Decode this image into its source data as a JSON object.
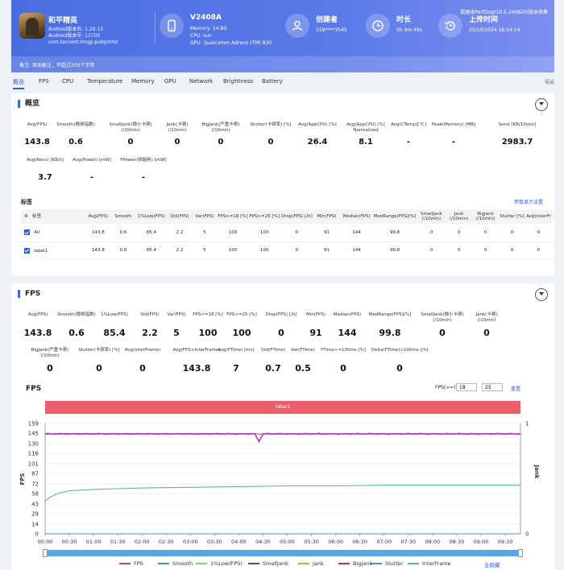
{
  "header": {
    "app_name": "和平精英",
    "android_line1": "Android版本名: 1.28.13",
    "android_line2": "Android版本号: 12700",
    "package": "com.tencent.tmgp.pubgmhd",
    "device_name": "V2408A",
    "memory": "Memory: 14.8G",
    "cpu": "CPU: sun",
    "gpu": "GPU: Qualcomm Adreno (TM) 830",
    "creator_title": "创建者",
    "creator_value": "159****3545",
    "duration_title": "时长",
    "duration_value": "0h 9m 49s",
    "upload_title": "上传时间",
    "upload_value": "25/10/2024 18:14:14",
    "version_note": "数据由PerfDog(10.5.240820)版本收集",
    "remark": "备注: 添加备注，不超过200个字符"
  },
  "tabs": [
    "概览",
    "FPS",
    "CPU",
    "Temperature",
    "Memory",
    "GPU",
    "Network",
    "Brightness",
    "Battery"
  ],
  "export_label": "导出",
  "overview": {
    "title": "概览",
    "watermark": "PerfDog",
    "metrics_row1": [
      {
        "label": "Avg(FPS)",
        "value": "143.8"
      },
      {
        "label": "Smooth(稳帧指数)",
        "value": "0.6"
      },
      {
        "label": "SmallJank(微小卡顿)\n(/10min)",
        "value": "0"
      },
      {
        "label": "Jank(卡顿)\n(/10min)",
        "value": "0"
      },
      {
        "label": "BigJank(严重卡顿)\n(/10min)",
        "value": "0"
      },
      {
        "label": "Stutter(卡顿率) [%]",
        "value": "0"
      },
      {
        "label": "Avg(AppCPU) [%]",
        "value": "26.4"
      },
      {
        "label": "Avg(AppCPU) [%]\nNormalized",
        "value": "8.1"
      },
      {
        "label": "Avg(CTemp)[°C]",
        "value": "-"
      },
      {
        "label": "Peak(Memory) [MB]",
        "value": "-"
      },
      {
        "label": "Send [KB/10min]",
        "value": "2983.7"
      }
    ],
    "metrics_row2": [
      {
        "label": "Avg(Recv) [KB/s]",
        "value": "3.7"
      },
      {
        "label": "Avg(Power) [mW]",
        "value": "-"
      },
      {
        "label": "FPower(帧能耗) [mW]",
        "value": "-"
      }
    ],
    "labels_section": "标签",
    "settings_link": "参数显示设置",
    "table_headers": [
      "标签",
      "Avg(FPS)",
      "Smooth",
      "1%Low(FPS)",
      "Std(FPS)",
      "Var(FPS)",
      "FPS>=18 [%]",
      "FPS>=25 [%]",
      "Drop(FPS) [/h]",
      "Min(FPS)",
      "Median(FPS)",
      "MedRange(FPS)[%]",
      "SmallJank\n(/10min)",
      "Jank\n(/10min)",
      "BigJank\n(/10min)",
      "Stutter [%]",
      "Avg(InterFr"
    ],
    "table_rows": [
      [
        "All",
        "143.8",
        "0.6",
        "85.4",
        "2.2",
        "5",
        "100",
        "100",
        "0",
        "91",
        "144",
        "99.8",
        "0",
        "0",
        "0",
        "0",
        "0"
      ],
      [
        "label1",
        "143.8",
        "0.6",
        "85.4",
        "2.2",
        "5",
        "100",
        "100",
        "0",
        "91",
        "144",
        "99.8",
        "0",
        "0",
        "0",
        "0",
        "0"
      ]
    ]
  },
  "fps_section": {
    "title": "FPS",
    "metrics_row1": [
      {
        "label": "Avg(FPS)",
        "value": "143.8"
      },
      {
        "label": "Smooth(稳帧指数)",
        "value": "0.6"
      },
      {
        "label": "1%Low(FPS)",
        "value": "85.4"
      },
      {
        "label": "Std(FPS)",
        "value": "2.2"
      },
      {
        "label": "Var(FPS)",
        "value": "5"
      },
      {
        "label": "FPS>=18 [%]",
        "value": "100"
      },
      {
        "label": "FPS>=25 [%]",
        "value": "100"
      },
      {
        "label": "Drop(FPS) [/h]",
        "value": "0"
      },
      {
        "label": "Min(FPS)",
        "value": "91"
      },
      {
        "label": "Median(FPS)",
        "value": "144"
      },
      {
        "label": "MedRange(FPS)[%]",
        "value": "99.8"
      },
      {
        "label": "SmallJank(微小卡顿)\n(/10min)",
        "value": "0"
      },
      {
        "label": "Jank(卡顿)\n(/10min)",
        "value": "0"
      }
    ],
    "metrics_row2": [
      {
        "label": "BigJank(严重卡顿)\n(/10min)",
        "value": "0"
      },
      {
        "label": "Stutter(卡顿率) [%]",
        "value": "0"
      },
      {
        "label": "Avg(InterFrame)",
        "value": "0"
      },
      {
        "label": "Avg(FPS+InterFrame)",
        "value": "143.8"
      },
      {
        "label": "Avg(FTime) [ms]",
        "value": "7"
      },
      {
        "label": "Std(FTime)",
        "value": "0.7"
      },
      {
        "label": "Var(FTime)",
        "value": "0.5"
      },
      {
        "label": "FTime>=100ms [%]",
        "value": "0"
      },
      {
        "label": "Delta(FTime)>100ms [/h]",
        "value": "0"
      }
    ],
    "chart_title": "FPS",
    "fps_filter_label": "FPS(>=)",
    "fps_filter_a": "18",
    "fps_filter_b": "25",
    "reset_label": "重置",
    "label_bar": "label1",
    "hide_all": "全隐藏"
  },
  "chart_data": {
    "type": "line",
    "xlabel": "",
    "ylabel": "FPS",
    "y2label": "Jank",
    "y_ticks": [
      "159",
      "145",
      "130",
      "116",
      "101",
      "87",
      "72",
      "58",
      "43",
      "29",
      "14",
      "0"
    ],
    "y2_ticks": [
      "1",
      "0"
    ],
    "ylim": [
      0,
      159
    ],
    "x_ticks": [
      "00:00",
      "00:30",
      "01:00",
      "01:30",
      "02:00",
      "02:30",
      "03:00",
      "03:30",
      "04:00",
      "04:30",
      "05:00",
      "05:30",
      "06:00",
      "06:30",
      "07:00",
      "07:30",
      "08:00",
      "08:30",
      "09:00",
      "09:30"
    ],
    "series": [
      {
        "name": "FPS",
        "color": "#b03fb5",
        "x": [
          0,
          30,
          60,
          90,
          120,
          150,
          180,
          210,
          240,
          260,
          265,
          270,
          300,
          330,
          360,
          390,
          420,
          450,
          480,
          510,
          540,
          570,
          589
        ],
        "y": [
          144,
          144,
          144,
          144,
          144,
          144,
          144,
          144,
          144,
          144,
          133,
          144,
          144,
          144,
          144,
          144,
          144,
          144,
          144,
          144,
          144,
          144,
          144
        ]
      },
      {
        "name": "Smooth",
        "color": "#3fa35a",
        "x": [
          0,
          589
        ],
        "y": [
          0,
          0
        ]
      },
      {
        "name": "1%Low(FPS)",
        "color": "#8fd16b",
        "x": [
          0,
          589
        ],
        "y": [
          0,
          0
        ]
      },
      {
        "name": "SmallJank",
        "color": "#5b3fa8",
        "x": [
          0,
          589
        ],
        "y": [
          0,
          0
        ]
      },
      {
        "name": "Jank",
        "color": "#f0a02e",
        "x": [
          0,
          589
        ],
        "y": [
          0,
          0
        ]
      },
      {
        "name": "BigJank",
        "color": "#c0392b",
        "x": [
          0,
          589
        ],
        "y": [
          0,
          0
        ]
      },
      {
        "name": "Stutter",
        "color": "#4a90c8",
        "x": [
          0,
          589
        ],
        "y": [
          0,
          0
        ]
      },
      {
        "name": "InterFrame",
        "color": "#5ab8a8",
        "x": [
          0,
          5,
          15,
          30,
          60,
          90,
          120,
          180,
          240,
          300,
          360,
          420,
          480,
          540,
          589
        ],
        "y": [
          47,
          52,
          58,
          62,
          64,
          65,
          66,
          67,
          68,
          69,
          69,
          70,
          70,
          70,
          70
        ]
      }
    ],
    "grid": true,
    "legend": "bottom"
  }
}
